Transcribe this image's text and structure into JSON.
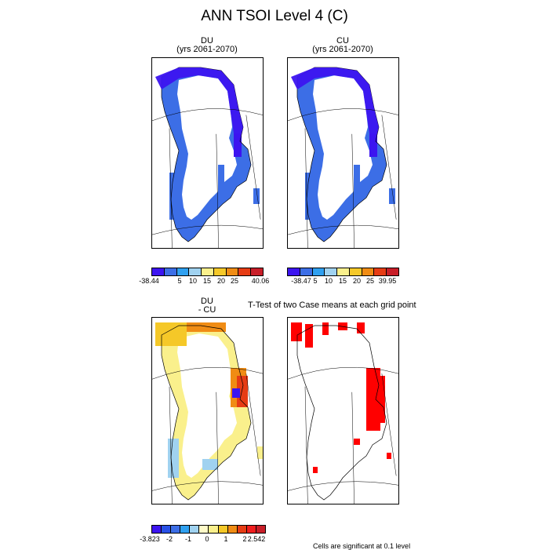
{
  "main_title": "ANN TSOI Level 4 (C)",
  "panels": {
    "du": {
      "name": "DU",
      "years": "(yrs 2061-2070)"
    },
    "cu": {
      "name": "CU",
      "years": "(yrs 2061-2070)"
    },
    "diff": {
      "name": "DU",
      "sub": "- CU"
    },
    "ttest": {
      "title": "T-Test of two Case means at each grid point"
    }
  },
  "colors": {
    "deep_blue": "#3c14f0",
    "blue": "#3c6ee6",
    "light_blue": "#2fa0f0",
    "pale_blue": "#a0d2f0",
    "pale_yellow": "#faf08c",
    "yellow": "#f5c828",
    "orange": "#f08c14",
    "red_orange": "#e63c14",
    "red": "#f01e1e",
    "dark_red": "#c81e28",
    "sig_red": "#ff0000"
  },
  "colorbars": {
    "du": {
      "labels": [
        "-38.44",
        "5",
        "10",
        "15",
        "20",
        "25",
        "40.06"
      ]
    },
    "cu": {
      "labels": [
        "-38.47",
        "5",
        "10",
        "15",
        "20",
        "25",
        "39.95"
      ]
    },
    "diff": {
      "labels": [
        "-3.823",
        "-2",
        "-1",
        "0",
        "1",
        "2",
        "2.542"
      ]
    }
  },
  "footer_note": "Cells are significant at 0.1 level",
  "chart_data": [
    {
      "type": "heatmap",
      "title": "DU",
      "subtitle": "(yrs 2061-2070)",
      "colorbar_min": -38.44,
      "colorbar_max": 40.06,
      "colorbar_ticks": [
        5,
        10,
        15,
        20,
        25
      ]
    },
    {
      "type": "heatmap",
      "title": "CU",
      "subtitle": "(yrs 2061-2070)",
      "colorbar_min": -38.47,
      "colorbar_max": 39.95,
      "colorbar_ticks": [
        5,
        10,
        15,
        20,
        25
      ]
    },
    {
      "type": "heatmap",
      "title": "DU",
      "subtitle": "- CU",
      "colorbar_min": -3.823,
      "colorbar_max": 2.542,
      "colorbar_ticks": [
        -2,
        -1,
        0,
        1,
        2
      ]
    },
    {
      "type": "heatmap",
      "title": "T-Test of two Case means at each grid point",
      "note": "Cells are significant at 0.1 level"
    }
  ]
}
